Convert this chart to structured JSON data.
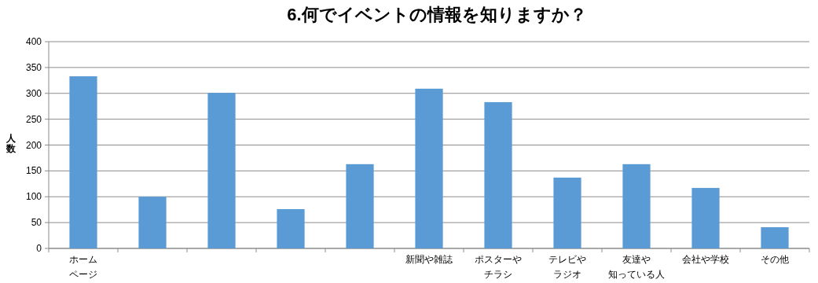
{
  "chart_data": {
    "type": "bar",
    "title": "6.何でイベントの情報を知りますか？",
    "ylabel": "人数",
    "categories": [
      "ホームページ",
      null,
      null,
      null,
      null,
      "新聞や雑誌",
      "ポスターやチラシ",
      "テレビやラジオ",
      "友達や知っている人",
      "会社や学校",
      "その他"
    ],
    "values": [
      333,
      100,
      301,
      76,
      163,
      309,
      283,
      137,
      163,
      117,
      41
    ],
    "color": "#5b9bd5",
    "ylim": [
      0,
      400
    ],
    "yticks": [
      0,
      50,
      100,
      150,
      200,
      250,
      300,
      350,
      400
    ],
    "grid": "y"
  }
}
